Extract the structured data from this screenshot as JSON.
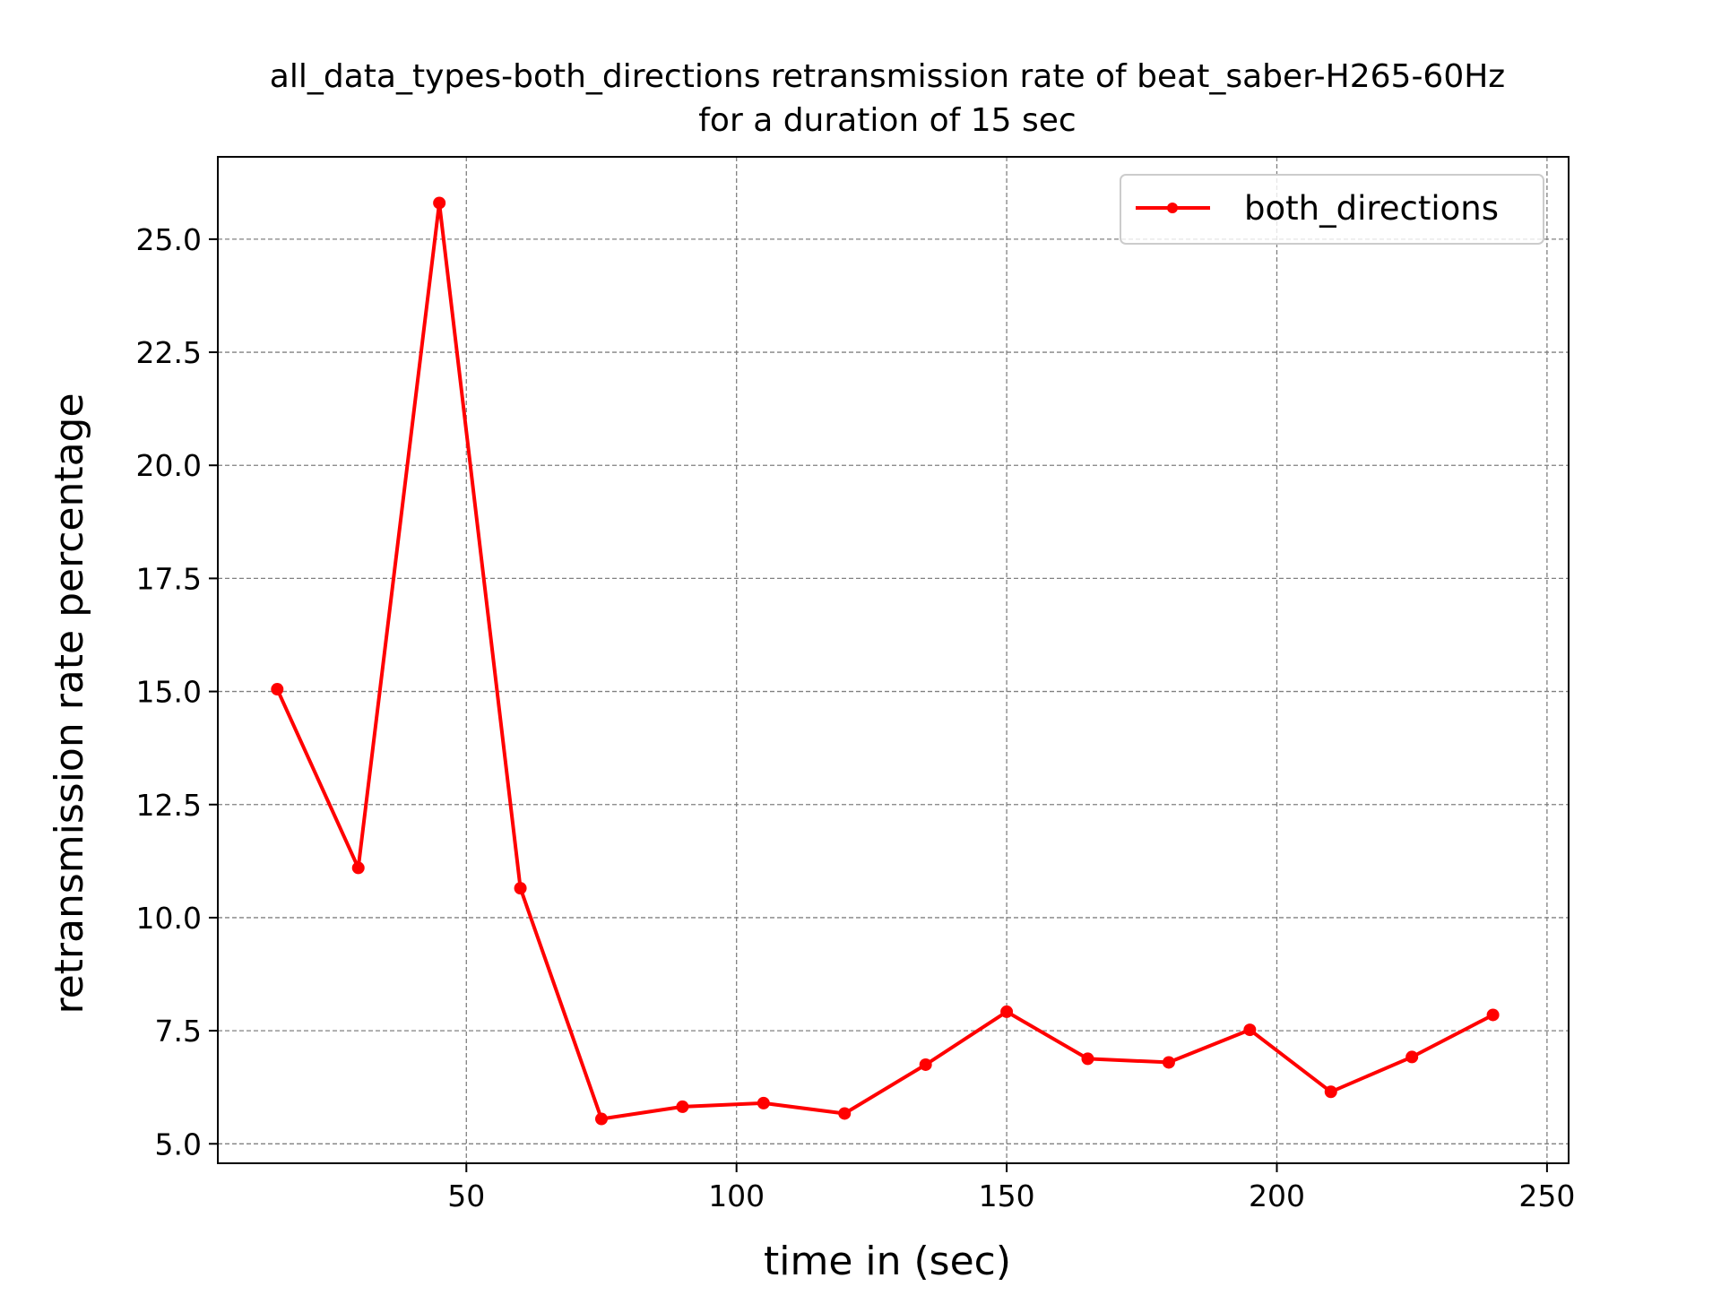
{
  "chart_data": {
    "type": "line",
    "title": "all_data_types-both_directions retransmission rate of beat_saber-H265-60Hz",
    "subtitle": "for a duration of 15 sec",
    "xlabel": "time in (sec)",
    "ylabel": "retransmission rate percentage",
    "xlim": [
      4,
      254
    ],
    "ylim": [
      4.57,
      26.82
    ],
    "xticks": [
      50,
      100,
      150,
      200,
      250
    ],
    "xtick_labels": [
      "50",
      "100",
      "150",
      "200",
      "250"
    ],
    "yticks": [
      5.0,
      7.5,
      10.0,
      12.5,
      15.0,
      17.5,
      20.0,
      22.5,
      25.0
    ],
    "ytick_labels": [
      "5.0",
      "7.5",
      "10.0",
      "12.5",
      "15.0",
      "17.5",
      "20.0",
      "22.5",
      "25.0"
    ],
    "grid": true,
    "legend_position": "top-right",
    "series": [
      {
        "name": "both_directions",
        "color": "#ff0000",
        "marker": "circle",
        "x": [
          15,
          30,
          45,
          60,
          75,
          90,
          105,
          120,
          135,
          150,
          165,
          180,
          195,
          210,
          225,
          240
        ],
        "y": [
          15.05,
          11.1,
          25.8,
          10.65,
          5.55,
          5.82,
          5.9,
          5.67,
          6.75,
          7.92,
          6.88,
          6.8,
          7.52,
          6.15,
          6.92,
          7.85
        ]
      }
    ]
  }
}
